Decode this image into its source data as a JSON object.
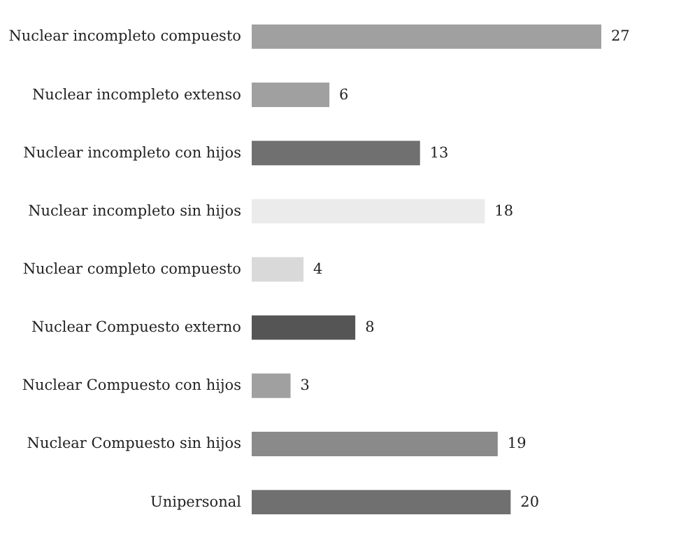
{
  "chart_data": {
    "type": "bar",
    "orientation": "horizontal",
    "data_labels": true,
    "tick_labels": "y",
    "categories": [
      "Nuclear incompleto compuesto",
      "Nuclear incompleto extenso",
      "Nuclear incompleto con hijos",
      "Nuclear incompleto sin hijos",
      "Nuclear completo compuesto",
      "Nuclear Compuesto externo",
      "Nuclear Compuesto con hijos",
      "Nuclear Compuesto sin hijos",
      "Unipersonal"
    ],
    "values": [
      27,
      6,
      13,
      18,
      4,
      8,
      3,
      19,
      20
    ],
    "colors": [
      "#a0a0a0",
      "#a0a0a0",
      "#707070",
      "#ebebeb",
      "#d9d9d9",
      "#555555",
      "#a0a0a0",
      "#8a8a8a",
      "#707070"
    ]
  }
}
